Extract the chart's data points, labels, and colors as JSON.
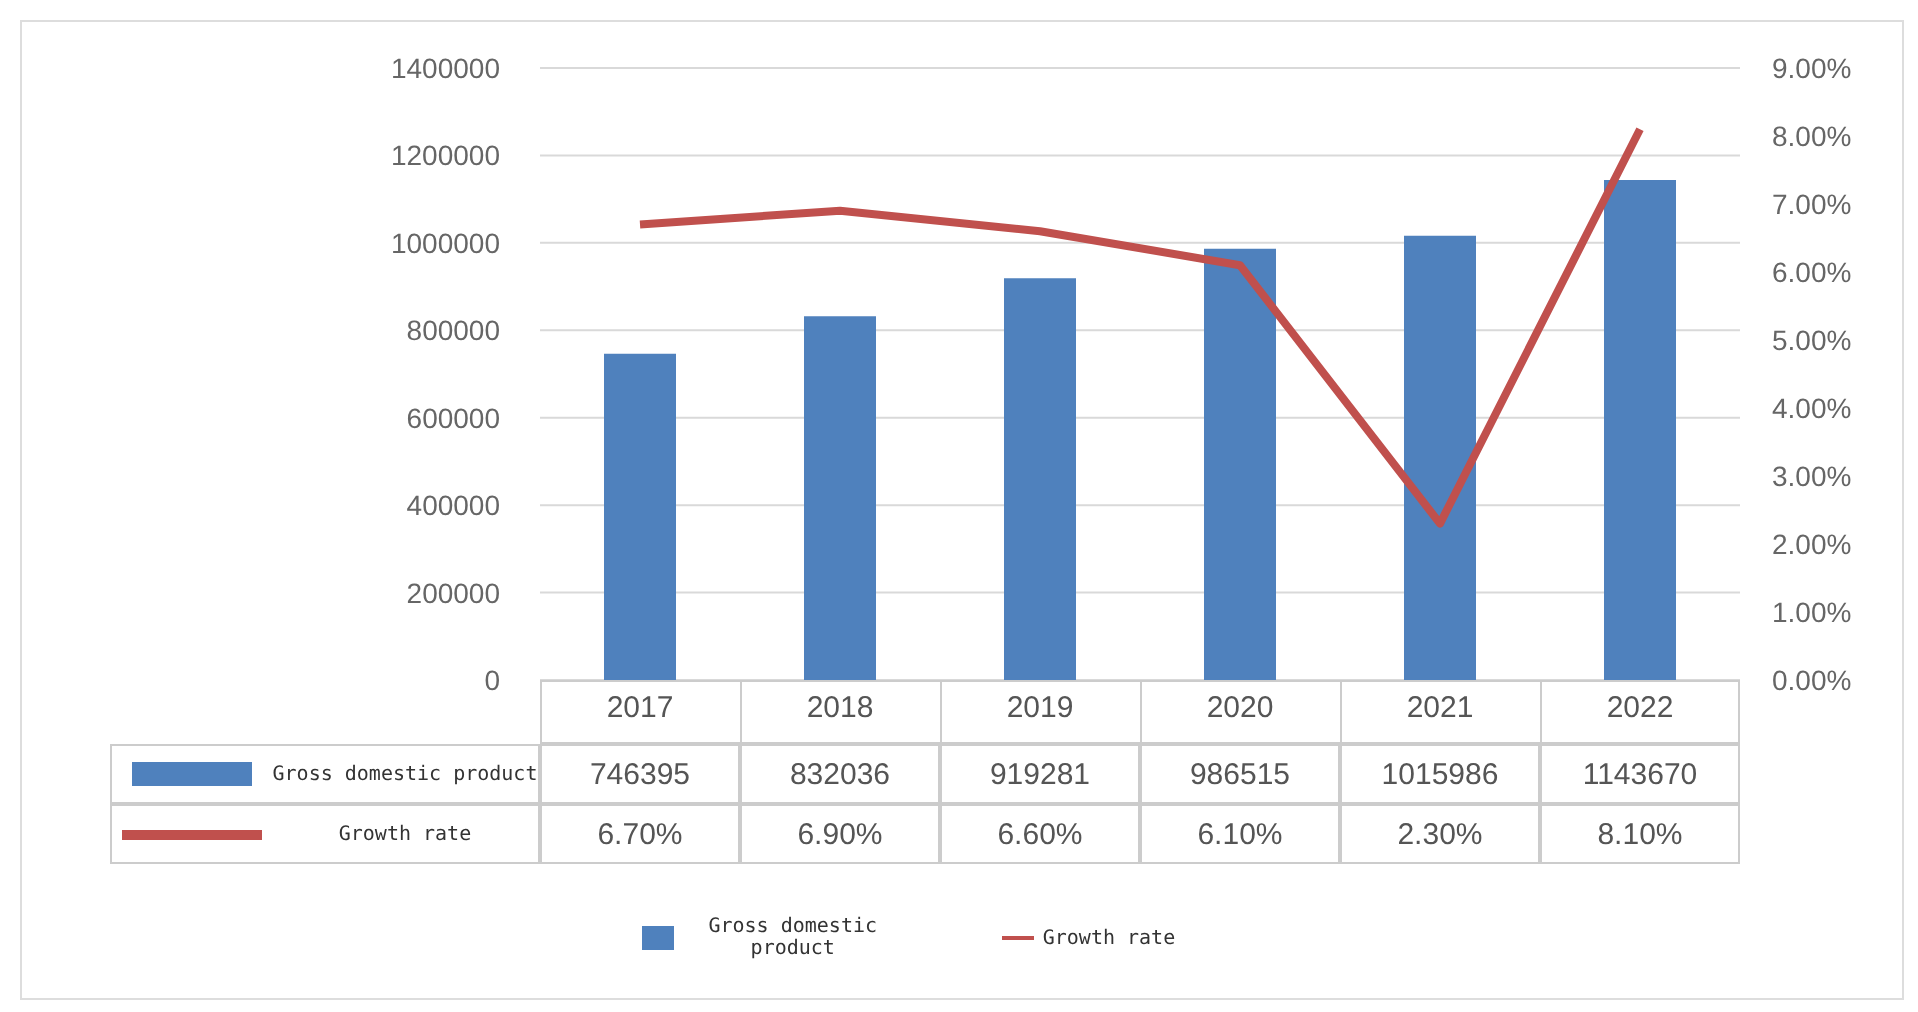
{
  "chart_data": {
    "type": "bar",
    "categories": [
      "2017",
      "2018",
      "2019",
      "2020",
      "2021",
      "2022"
    ],
    "series": [
      {
        "name": "Gross domestic product",
        "color": "#4f81bd",
        "values": [
          746395,
          832036,
          919281,
          986515,
          1015986,
          1143670
        ],
        "value_labels": [
          "746395",
          "832036",
          "919281",
          "986515",
          "1015986",
          "1143670"
        ]
      },
      {
        "name": "Growth rate",
        "type": "line",
        "axis": "y2",
        "color": "#c0504d",
        "values": [
          6.7,
          6.9,
          6.6,
          6.1,
          2.3,
          8.1
        ],
        "value_labels": [
          "6.70%",
          "6.90%",
          "6.60%",
          "6.10%",
          "2.30%",
          "8.10%"
        ]
      }
    ],
    "ylim": [
      0,
      1400000
    ],
    "yticks": [
      0,
      200000,
      400000,
      600000,
      800000,
      1000000,
      1200000,
      1400000
    ],
    "y2lim": [
      0,
      9
    ],
    "y2ticks": [
      {
        "value": 0,
        "label": "0.00%"
      },
      {
        "value": 1,
        "label": "1.00%"
      },
      {
        "value": 2,
        "label": "2.00%"
      },
      {
        "value": 3,
        "label": "3.00%"
      },
      {
        "value": 4,
        "label": "4.00%"
      },
      {
        "value": 5,
        "label": "5.00%"
      },
      {
        "value": 6,
        "label": "6.00%"
      },
      {
        "value": 7,
        "label": "7.00%"
      },
      {
        "value": 8,
        "label": "8.00%"
      },
      {
        "value": 9,
        "label": "9.00%"
      }
    ],
    "grid": "y",
    "legend": "bottom"
  }
}
